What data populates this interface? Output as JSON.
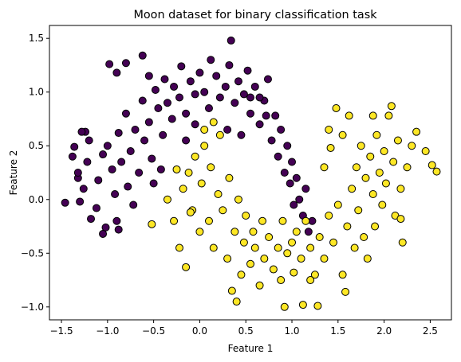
{
  "chart_data": {
    "type": "scatter",
    "title": "Moon dataset for binary classification task",
    "xlabel": "Feature 1",
    "ylabel": "Feature 2",
    "xlim": [
      -1.63,
      2.73
    ],
    "ylim": [
      -1.12,
      1.62
    ],
    "xticks": [
      -1.5,
      -1.0,
      -0.5,
      0.0,
      0.5,
      1.0,
      1.5,
      2.0,
      2.5
    ],
    "yticks": [
      -1.0,
      -0.5,
      0.0,
      0.5,
      1.0,
      1.5
    ],
    "grid": false,
    "legend": "none",
    "series": [
      {
        "class": 0,
        "color": "#440154",
        "points": [
          [
            -1.46,
            -0.03
          ],
          [
            -1.36,
            0.49
          ],
          [
            -1.38,
            0.4
          ],
          [
            -1.32,
            0.2
          ],
          [
            -1.3,
            -0.02
          ],
          [
            -1.26,
            0.1
          ],
          [
            -1.22,
            0.35
          ],
          [
            -1.2,
            0.55
          ],
          [
            -1.24,
            0.63
          ],
          [
            -1.18,
            -0.18
          ],
          [
            -1.12,
            -0.08
          ],
          [
            -1.1,
            0.18
          ],
          [
            -1.05,
            0.42
          ],
          [
            -1.0,
            0.5
          ],
          [
            -1.02,
            -0.26
          ],
          [
            -0.95,
            0.28
          ],
          [
            -0.92,
            0.05
          ],
          [
            -0.9,
            -0.2
          ],
          [
            -0.88,
            0.62
          ],
          [
            -0.85,
            0.35
          ],
          [
            -0.8,
            0.8
          ],
          [
            -0.78,
            0.12
          ],
          [
            -0.75,
            0.45
          ],
          [
            -0.7,
            0.65
          ],
          [
            -0.72,
            -0.05
          ],
          [
            -0.66,
            0.25
          ],
          [
            -0.62,
            0.92
          ],
          [
            -0.6,
            0.55
          ],
          [
            -0.55,
            0.72
          ],
          [
            -0.52,
            0.38
          ],
          [
            -0.48,
            1.02
          ],
          [
            -0.45,
            0.85
          ],
          [
            -0.4,
            0.6
          ],
          [
            -0.38,
            1.12
          ],
          [
            -0.35,
            0.9
          ],
          [
            -0.3,
            0.75
          ],
          [
            -0.28,
            1.05
          ],
          [
            -0.22,
            0.95
          ],
          [
            -0.2,
            1.24
          ],
          [
            -0.15,
            0.8
          ],
          [
            -0.1,
            1.1
          ],
          [
            -0.05,
            0.98
          ],
          [
            0.0,
            1.18
          ],
          [
            0.05,
            1.0
          ],
          [
            0.1,
            0.85
          ],
          [
            0.12,
            1.3
          ],
          [
            0.18,
            1.15
          ],
          [
            0.22,
            0.95
          ],
          [
            0.28,
            1.05
          ],
          [
            0.32,
            1.25
          ],
          [
            0.34,
            1.48
          ],
          [
            0.38,
            0.9
          ],
          [
            0.42,
            1.1
          ],
          [
            0.48,
            0.98
          ],
          [
            0.52,
            1.2
          ],
          [
            0.55,
            0.8
          ],
          [
            0.6,
            1.05
          ],
          [
            0.65,
            0.7
          ],
          [
            0.7,
            0.92
          ],
          [
            0.74,
            1.12
          ],
          [
            0.78,
            0.55
          ],
          [
            0.82,
            0.78
          ],
          [
            0.85,
            0.4
          ],
          [
            0.88,
            0.65
          ],
          [
            0.92,
            0.25
          ],
          [
            0.95,
            0.5
          ],
          [
            0.98,
            0.15
          ],
          [
            1.0,
            0.35
          ],
          [
            1.02,
            -0.05
          ],
          [
            1.05,
            0.2
          ],
          [
            1.08,
            0.0
          ],
          [
            1.12,
            -0.15
          ],
          [
            1.15,
            0.1
          ],
          [
            1.18,
            -0.3
          ],
          [
            1.22,
            -0.2
          ],
          [
            -0.98,
            1.26
          ],
          [
            -0.9,
            1.18
          ],
          [
            -0.8,
            1.27
          ],
          [
            -0.62,
            1.34
          ],
          [
            -0.55,
            1.15
          ],
          [
            -1.28,
            0.63
          ],
          [
            -1.32,
            0.25
          ],
          [
            -0.42,
            0.28
          ],
          [
            -0.5,
            0.15
          ],
          [
            -1.05,
            -0.32
          ],
          [
            -0.88,
            -0.28
          ],
          [
            0.3,
            0.65
          ],
          [
            0.45,
            0.6
          ],
          [
            0.55,
            0.95
          ],
          [
            0.65,
            0.95
          ],
          [
            0.72,
            0.78
          ],
          [
            -0.15,
            0.55
          ],
          [
            -0.05,
            0.7
          ]
        ]
      },
      {
        "class": 1,
        "color": "#fde725",
        "points": [
          [
            -0.52,
            -0.23
          ],
          [
            -0.35,
            0.0
          ],
          [
            -0.28,
            -0.2
          ],
          [
            -0.25,
            0.28
          ],
          [
            -0.22,
            -0.45
          ],
          [
            -0.18,
            0.1
          ],
          [
            -0.15,
            -0.63
          ],
          [
            -0.12,
            0.25
          ],
          [
            -0.08,
            -0.1
          ],
          [
            -0.05,
            0.4
          ],
          [
            0.0,
            -0.3
          ],
          [
            0.02,
            0.15
          ],
          [
            0.05,
            0.5
          ],
          [
            0.1,
            -0.2
          ],
          [
            0.12,
            0.3
          ],
          [
            0.15,
            -0.45
          ],
          [
            0.2,
            0.05
          ],
          [
            0.22,
            0.6
          ],
          [
            0.25,
            -0.1
          ],
          [
            0.3,
            -0.55
          ],
          [
            0.32,
            0.2
          ],
          [
            0.35,
            -0.85
          ],
          [
            0.38,
            -0.3
          ],
          [
            0.42,
            0.0
          ],
          [
            0.45,
            -0.7
          ],
          [
            0.48,
            -0.4
          ],
          [
            0.5,
            -0.15
          ],
          [
            0.55,
            -0.6
          ],
          [
            0.58,
            -0.3
          ],
          [
            0.6,
            -0.45
          ],
          [
            0.65,
            -0.8
          ],
          [
            0.68,
            -0.2
          ],
          [
            0.7,
            -0.55
          ],
          [
            0.75,
            -0.35
          ],
          [
            0.8,
            -0.65
          ],
          [
            0.85,
            -0.45
          ],
          [
            0.88,
            -0.75
          ],
          [
            0.9,
            -0.2
          ],
          [
            0.95,
            -0.5
          ],
          [
            1.0,
            -0.4
          ],
          [
            1.02,
            -0.68
          ],
          [
            1.05,
            -0.3
          ],
          [
            1.1,
            -0.55
          ],
          [
            1.12,
            -0.98
          ],
          [
            1.15,
            -0.2
          ],
          [
            1.2,
            -0.45
          ],
          [
            1.25,
            -0.7
          ],
          [
            1.28,
            -0.99
          ],
          [
            1.3,
            -0.35
          ],
          [
            1.35,
            -0.55
          ],
          [
            1.4,
            -0.15
          ],
          [
            1.45,
            -0.4
          ],
          [
            1.5,
            -0.05
          ],
          [
            1.55,
            -0.7
          ],
          [
            1.58,
            -0.86
          ],
          [
            1.6,
            -0.25
          ],
          [
            1.65,
            0.1
          ],
          [
            1.68,
            -0.45
          ],
          [
            1.7,
            0.3
          ],
          [
            1.72,
            -0.1
          ],
          [
            1.75,
            0.5
          ],
          [
            1.78,
            -0.35
          ],
          [
            1.8,
            0.2
          ],
          [
            1.82,
            -0.55
          ],
          [
            1.85,
            0.4
          ],
          [
            1.88,
            0.05
          ],
          [
            1.9,
            -0.25
          ],
          [
            1.92,
            0.6
          ],
          [
            1.95,
            0.25
          ],
          [
            1.98,
            -0.05
          ],
          [
            2.0,
            0.45
          ],
          [
            2.02,
            0.15
          ],
          [
            2.05,
            0.78
          ],
          [
            2.08,
            0.87
          ],
          [
            2.1,
            0.35
          ],
          [
            2.12,
            -0.15
          ],
          [
            2.15,
            0.55
          ],
          [
            2.18,
            0.1
          ],
          [
            2.2,
            -0.4
          ],
          [
            2.25,
            0.3
          ],
          [
            2.3,
            0.5
          ],
          [
            2.35,
            0.63
          ],
          [
            2.45,
            0.45
          ],
          [
            2.52,
            0.32
          ],
          [
            2.57,
            0.26
          ],
          [
            2.18,
            -0.18
          ],
          [
            1.62,
            0.78
          ],
          [
            1.55,
            0.6
          ],
          [
            1.48,
            0.85
          ],
          [
            1.4,
            0.65
          ],
          [
            1.42,
            0.48
          ],
          [
            1.35,
            0.3
          ],
          [
            0.05,
            0.65
          ],
          [
            0.15,
            0.72
          ],
          [
            -0.1,
            -0.12
          ],
          [
            0.4,
            -0.95
          ],
          [
            0.92,
            -1.0
          ],
          [
            1.2,
            -0.75
          ],
          [
            1.88,
            0.78
          ]
        ]
      }
    ]
  }
}
